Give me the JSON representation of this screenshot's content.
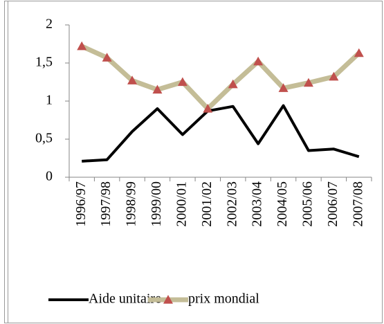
{
  "chart_data": {
    "type": "line",
    "categories": [
      "1996/97",
      "1997/98",
      "1998/99",
      "1999/00",
      "2000/01",
      "2001/02",
      "2002/03",
      "2003/04",
      "2004/05",
      "2005/06",
      "2006/07",
      "2007/08"
    ],
    "series": [
      {
        "name": "Aide unitaire",
        "color": "#000000",
        "values": [
          0.21,
          0.23,
          0.6,
          0.9,
          0.56,
          0.87,
          0.93,
          0.44,
          0.94,
          0.35,
          0.37,
          0.27
        ]
      },
      {
        "name": "prix mondial",
        "color": "#c4bd97",
        "marker_color": "#c0504d",
        "values": [
          1.72,
          1.57,
          1.27,
          1.15,
          1.25,
          0.9,
          1.22,
          1.52,
          1.17,
          1.24,
          1.32,
          1.63
        ]
      }
    ],
    "ylim": [
      0,
      2
    ],
    "yticks": [
      0,
      {
        "value": 0.5,
        "label": "0,5"
      },
      1,
      {
        "value": 1.5,
        "label": "1,5"
      },
      2
    ],
    "grid": false,
    "legend": "bottom"
  }
}
